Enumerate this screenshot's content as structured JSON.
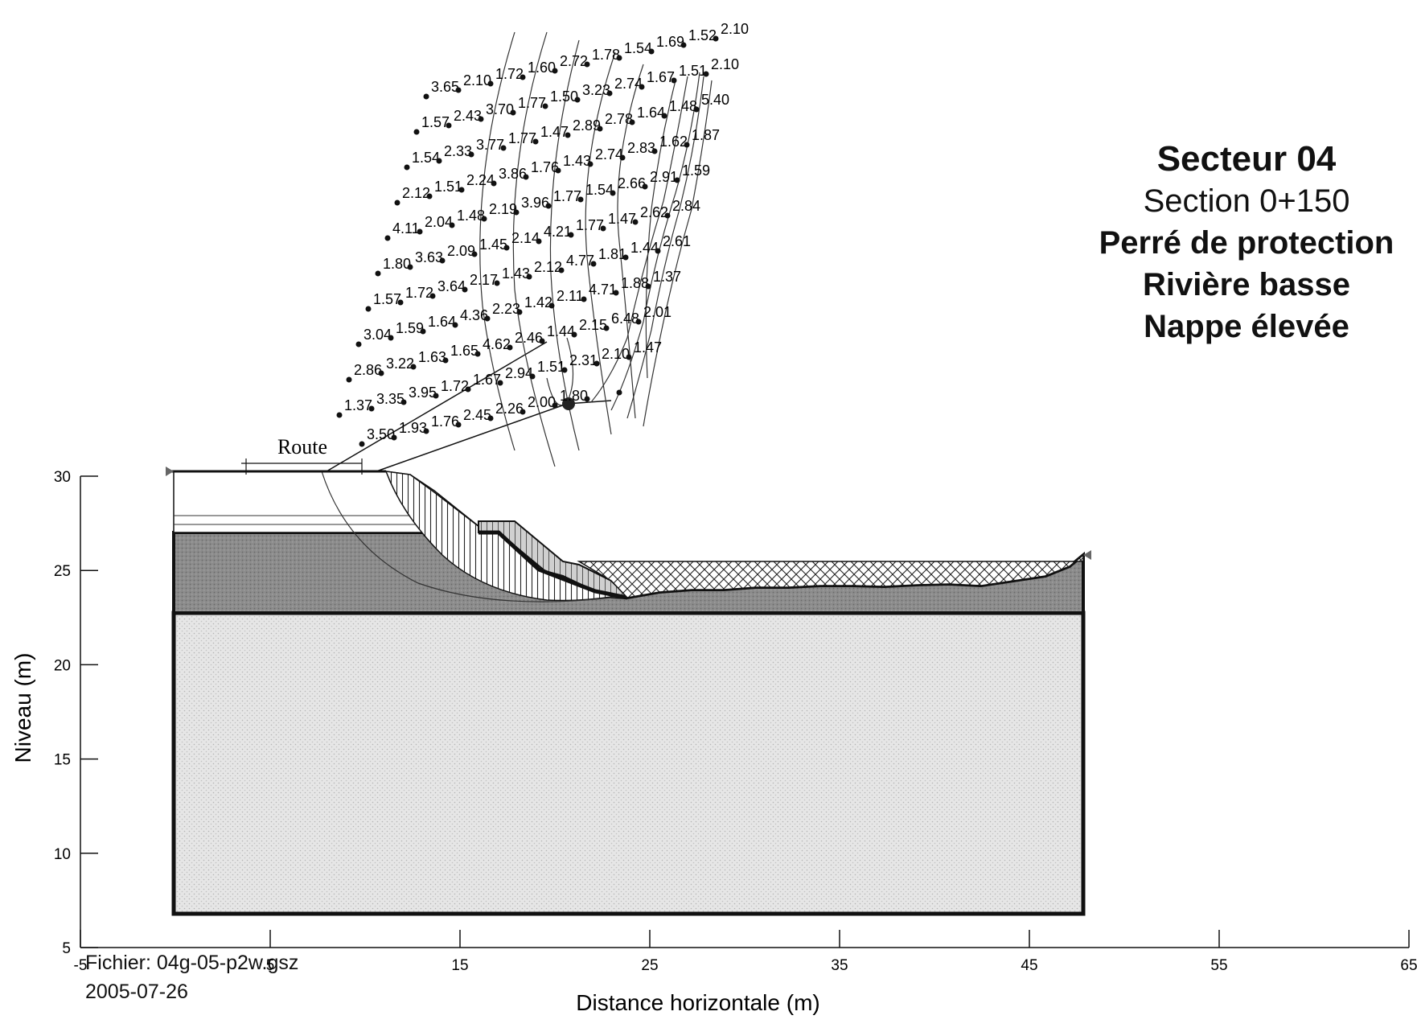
{
  "title": {
    "heading": "Secteur 04",
    "section": "Section 0+150",
    "line1": "Perré de protection",
    "line2": "Rivière basse",
    "line3": "Nappe élevée"
  },
  "footer": {
    "file": "Fichier: 04g-05-p2w.gsz",
    "date": "2005-07-26"
  },
  "road_label": "Route",
  "axes": {
    "xlabel": "Distance horizontale (m)",
    "ylabel": "Niveau (m)",
    "xlim": [
      -5,
      65
    ],
    "ylim": [
      5,
      30
    ],
    "xticks": [
      "-5",
      "5",
      "15",
      "25",
      "35",
      "45",
      "55",
      "65"
    ],
    "yticks": [
      "5",
      "10",
      "15",
      "20",
      "25",
      "30"
    ]
  },
  "colors": {
    "embankment": "#8a8a8a",
    "foundation": "#e4e4e4",
    "riprap": "#d6d6d6",
    "line": "#111111"
  },
  "factor_of_safety_labels": [
    "3.65",
    "2.10",
    "1.72",
    "1.60",
    "2.72",
    "1.78",
    "1.54",
    "1.69",
    "1.52",
    "2.10",
    "1.57",
    "2.43",
    "3.70",
    "1.77",
    "1.50",
    "3.23",
    "2.74",
    "1.67",
    "1.51",
    "2.10",
    "1.54",
    "2.33",
    "3.77",
    "1.77",
    "1.47",
    "2.89",
    "2.78",
    "1.64",
    "1.48",
    "5.40",
    "2.12",
    "1.51",
    "2.24",
    "3.86",
    "1.76",
    "1.43",
    "2.74",
    "2.83",
    "1.62",
    "1.87",
    "4.11",
    "2.04",
    "1.48",
    "2.19",
    "3.96",
    "1.77",
    "1.54",
    "2.66",
    "2.91",
    "1.59",
    "1.80",
    "3.63",
    "2.09",
    "1.45",
    "2.14",
    "4.21",
    "1.77",
    "1.47",
    "2.62",
    "2.84",
    "1.57",
    "1.72",
    "3.64",
    "2.17",
    "1.43",
    "2.12",
    "4.77",
    "1.81",
    "1.44",
    "2.61",
    "3.04",
    "1.59",
    "1.64",
    "4.36",
    "2.23",
    "1.42",
    "2.11",
    "4.71",
    "1.88",
    "1.37",
    "2.86",
    "3.22",
    "1.63",
    "1.65",
    "4.62",
    "2.46",
    "1.44",
    "2.15",
    "6.48",
    "2.01",
    "1.37",
    "3.35",
    "3.95",
    "1.72",
    "1.67",
    "2.94",
    "1.51",
    "2.31",
    "2.10",
    "1.47",
    "3.50",
    "1.93",
    "1.76",
    "2.45",
    "2.26",
    "2.00",
    "1.80"
  ]
}
